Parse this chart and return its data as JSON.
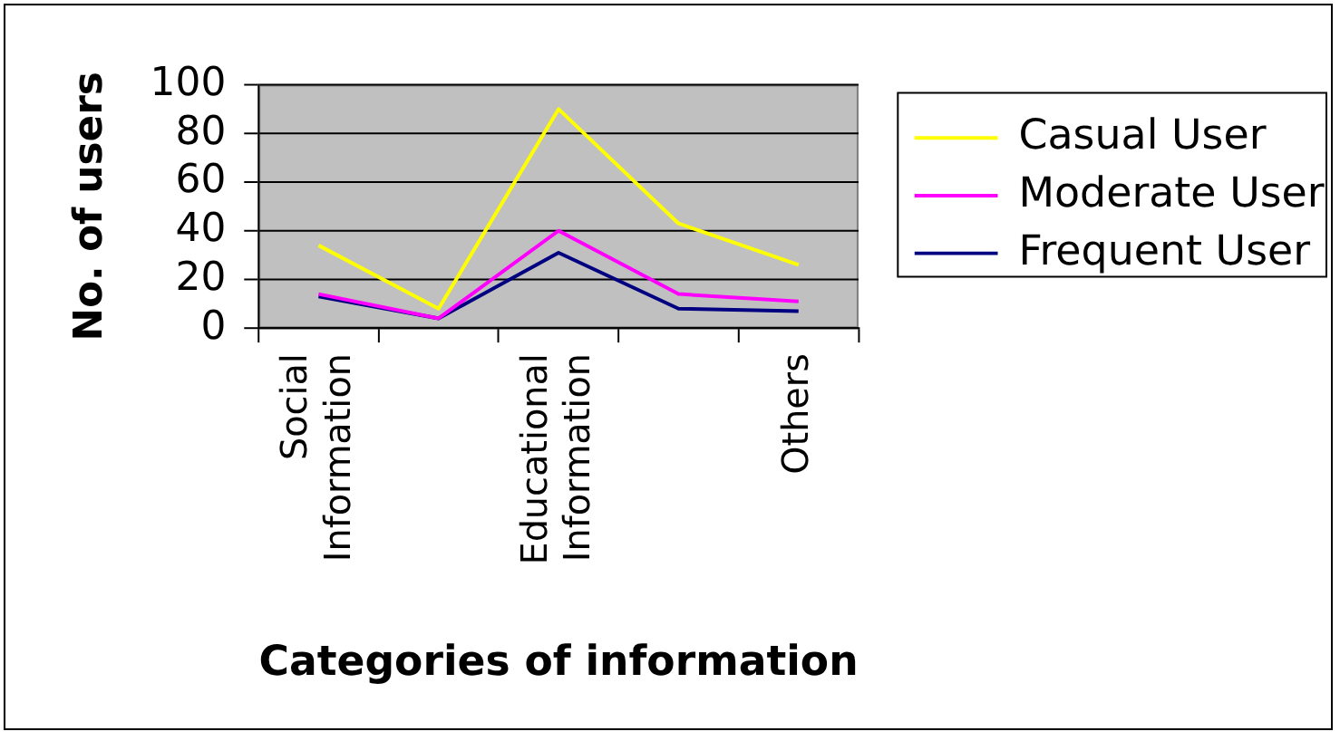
{
  "chart_data": {
    "type": "line",
    "xlabel": "Categories of information",
    "ylabel": "No. of users",
    "categories": [
      "Social Information",
      null,
      "Educational Information",
      null,
      "Others"
    ],
    "series": [
      {
        "name": "Casual User",
        "color": "#ffff00",
        "values": [
          34,
          8,
          90,
          43,
          26
        ]
      },
      {
        "name": "Moderate User",
        "color": "#ff00ff",
        "values": [
          14,
          4,
          40,
          14,
          11
        ]
      },
      {
        "name": "Frequent User",
        "color": "#000080",
        "values": [
          13,
          4,
          31,
          8,
          7
        ]
      }
    ],
    "ylim": [
      0,
      100
    ],
    "yticks": [
      0,
      20,
      40,
      60,
      80,
      100
    ],
    "grid": "y",
    "legend": "right",
    "marker": "none",
    "line_style": "solid"
  }
}
